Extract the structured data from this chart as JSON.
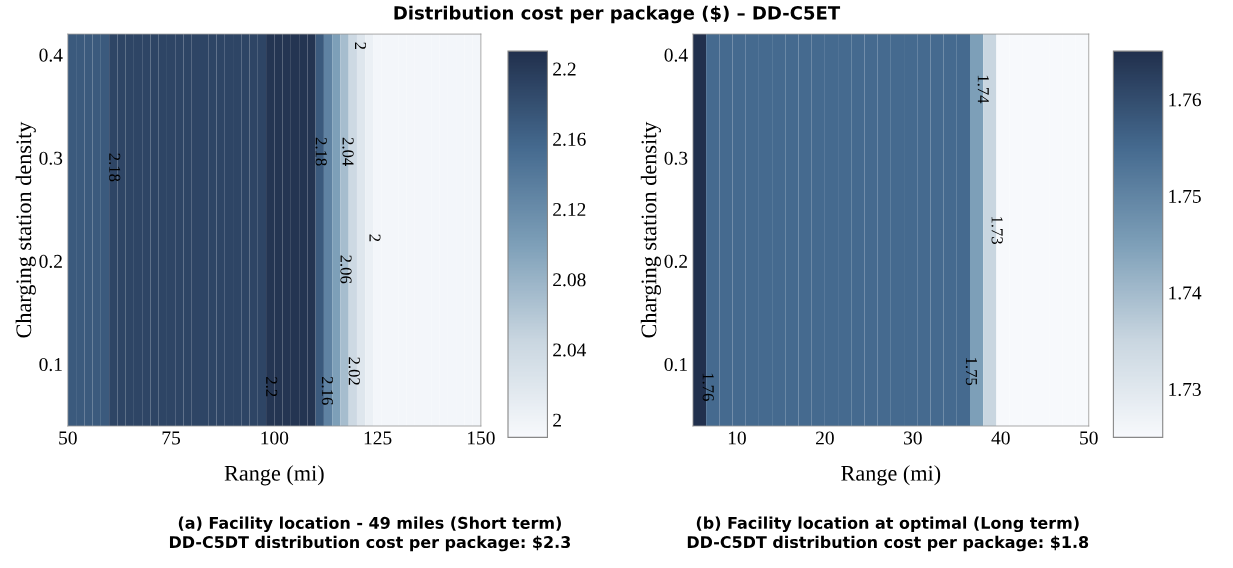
{
  "chart_data": [
    {
      "type": "heatmap",
      "title": "Distribution cost per package ($) – DD-C5ET",
      "xlabel": "Range (mi)",
      "ylabel": "Charging station density",
      "cells": [
        [
          2.17,
          2.17,
          2.17,
          2.17,
          2.17,
          2.19,
          2.19,
          2.19,
          2.19,
          2.19,
          2.19,
          2.19,
          2.19,
          2.19,
          2.19,
          2.19,
          2.19,
          2.19,
          2.19,
          2.19,
          2.19,
          2.19,
          2.19,
          2.19,
          2.205,
          2.205,
          2.205,
          2.205,
          2.205,
          2.205,
          2.17,
          2.13,
          2.1,
          2.07,
          2.04,
          2.02,
          2.005,
          1.995,
          1.995,
          1.995,
          1.995,
          1.995,
          1.995,
          1.995,
          1.995,
          1.995,
          1.995,
          1.995,
          1.995,
          1.995
        ]
      ],
      "xlim": [
        50,
        150
      ],
      "xticks": [
        50,
        75,
        100,
        125,
        150
      ],
      "ylim": [
        0.04,
        0.42
      ],
      "yticks": [
        0.1,
        0.2,
        0.3,
        0.4
      ],
      "clim": [
        1.99,
        2.21
      ],
      "cticks": [
        2,
        2.04,
        2.08,
        2.12,
        2.16,
        2.2
      ],
      "annotations": [
        "2.18",
        "2.2",
        "2.18",
        "2.04",
        "2",
        "2",
        "2.06",
        "2.02",
        "2.16",
        "(a) Facility location - 49 miles (Short term)\nDD-C5DT distribution cost per package: $2.3"
      ]
    },
    {
      "type": "heatmap",
      "xlabel": "Range (mi)",
      "ylabel": "Charging station density",
      "cells": [
        [
          1.765,
          1.755,
          1.755,
          1.755,
          1.755,
          1.755,
          1.755,
          1.755,
          1.755,
          1.755,
          1.755,
          1.755,
          1.755,
          1.755,
          1.755,
          1.755,
          1.755,
          1.755,
          1.755,
          1.755,
          1.755,
          1.745,
          1.735,
          1.725,
          1.725,
          1.725,
          1.725,
          1.725,
          1.725,
          1.725
        ]
      ],
      "xlim": [
        5,
        50
      ],
      "xticks": [
        10,
        20,
        30,
        40,
        50
      ],
      "ylim": [
        0.04,
        0.42
      ],
      "yticks": [
        0.1,
        0.2,
        0.3,
        0.4
      ],
      "clim": [
        1.725,
        1.765
      ],
      "cticks": [
        1.73,
        1.74,
        1.75,
        1.76
      ],
      "annotations": [
        "1.76",
        "1.74",
        "1.73",
        "1.75",
        "(b) Facility location at optimal (Long term)\nDD-C5DT distribution cost per package: $1.8"
      ]
    }
  ]
}
